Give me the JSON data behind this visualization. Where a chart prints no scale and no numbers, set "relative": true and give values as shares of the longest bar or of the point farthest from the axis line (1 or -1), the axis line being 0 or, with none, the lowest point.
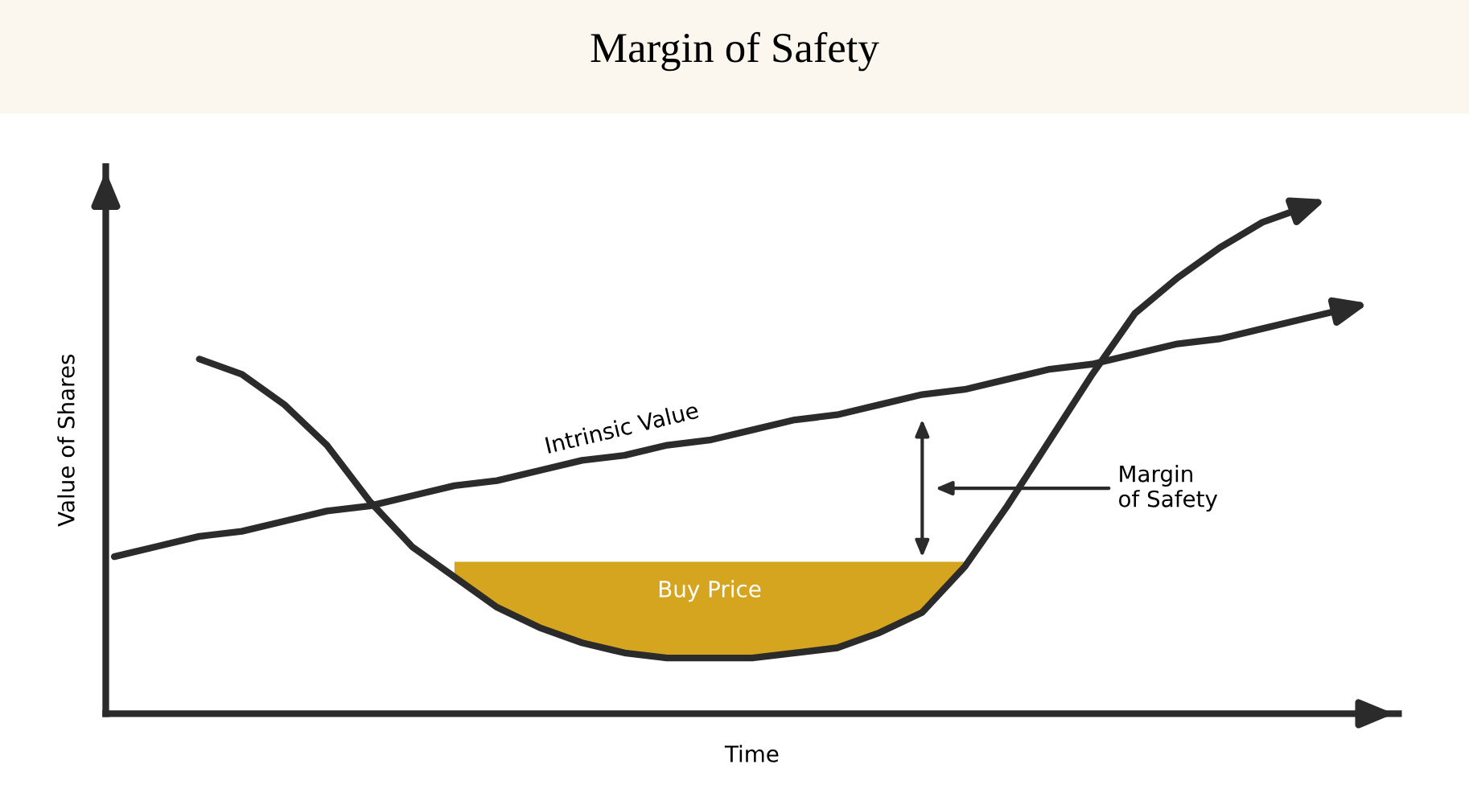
{
  "chart_data": {
    "type": "line",
    "relative": true,
    "title": "Margin of Safety",
    "xlabel": "Time",
    "ylabel": "Value of Shares",
    "categories": [
      null,
      null,
      null,
      null,
      null,
      null,
      null,
      null,
      null,
      null,
      null,
      null,
      null,
      null,
      null,
      null,
      null,
      null,
      null,
      null,
      null,
      null,
      null,
      null,
      null,
      null,
      null,
      null,
      null,
      null
    ],
    "series": [
      {
        "type": "area",
        "name": "Buy Price",
        "color": "#d6a520",
        "values": [
          null,
          null,
          null,
          null,
          null,
          null,
          null,
          null,
          0.3,
          0.3,
          0.3,
          0.3,
          0.3,
          0.3,
          0.3,
          0.3,
          0.3,
          0.3,
          0.3,
          0.3,
          0.3,
          null,
          null,
          null,
          null,
          null,
          null,
          null,
          null,
          null
        ]
      },
      {
        "color": "#2b2b2b",
        "values": [
          null,
          null,
          0.7,
          0.67,
          0.61,
          0.53,
          0.42,
          0.33,
          0.27,
          0.21,
          0.17,
          0.14,
          0.12,
          0.11,
          0.11,
          0.11,
          0.12,
          0.13,
          0.16,
          0.2,
          0.29,
          0.41,
          0.54,
          0.67,
          0.79,
          0.86,
          0.92,
          0.97,
          1.0,
          null
        ]
      },
      {
        "name": "Intrinsic Value",
        "color": "#2b2b2b",
        "values": [
          0.31,
          0.33,
          0.35,
          0.36,
          0.38,
          0.4,
          0.41,
          0.43,
          0.45,
          0.46,
          0.48,
          0.5,
          0.51,
          0.53,
          0.54,
          0.56,
          0.58,
          0.59,
          0.61,
          0.63,
          0.64,
          0.66,
          0.68,
          0.69,
          0.71,
          0.73,
          0.74,
          0.76,
          0.78,
          0.8
        ]
      }
    ],
    "annotations": [
      "Margin\nof Safety"
    ],
    "legend": false,
    "line_style": "solid",
    "marker": "none"
  }
}
